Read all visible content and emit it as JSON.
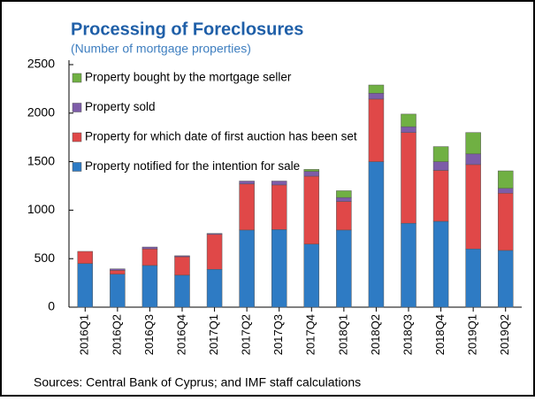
{
  "chart_data": {
    "type": "stacked_bar",
    "title": "Processing of Foreclosures",
    "subtitle": "(Number of mortgage properties)",
    "note": "Sources: Central Bank of Cyprus; and IMF staff calculations",
    "categories": [
      "2016Q1",
      "2016Q2",
      "2016Q3",
      "2016Q4",
      "2017Q1",
      "2017Q2",
      "2017Q3",
      "2017Q4",
      "2018Q1",
      "2018Q2",
      "2018Q3",
      "2018Q4",
      "2019Q1",
      "2019Q2"
    ],
    "series": [
      {
        "name": "Property notified for the intention for sale",
        "color": "#2e7bc4",
        "values": [
          450,
          340,
          430,
          330,
          390,
          795,
          800,
          650,
          795,
          1500,
          865,
          885,
          600,
          585
        ]
      },
      {
        "name": "Property for which date of first auction has been set",
        "color": "#e04848",
        "values": [
          125,
          40,
          170,
          190,
          360,
          475,
          460,
          700,
          295,
          645,
          935,
          525,
          870,
          590
        ]
      },
      {
        "name": "Property sold",
        "color": "#7d5ca8",
        "values": [
          0,
          15,
          20,
          10,
          10,
          30,
          40,
          50,
          40,
          60,
          60,
          90,
          110,
          50
        ]
      },
      {
        "name": "Property bought by the mortgage seller",
        "color": "#70b043",
        "values": [
          0,
          0,
          0,
          0,
          0,
          0,
          0,
          20,
          70,
          85,
          130,
          155,
          220,
          180
        ]
      }
    ],
    "ylim": [
      0,
      2500
    ],
    "yticks": [
      0,
      500,
      1000,
      1500,
      2000,
      2500
    ],
    "legend": "upper left"
  }
}
